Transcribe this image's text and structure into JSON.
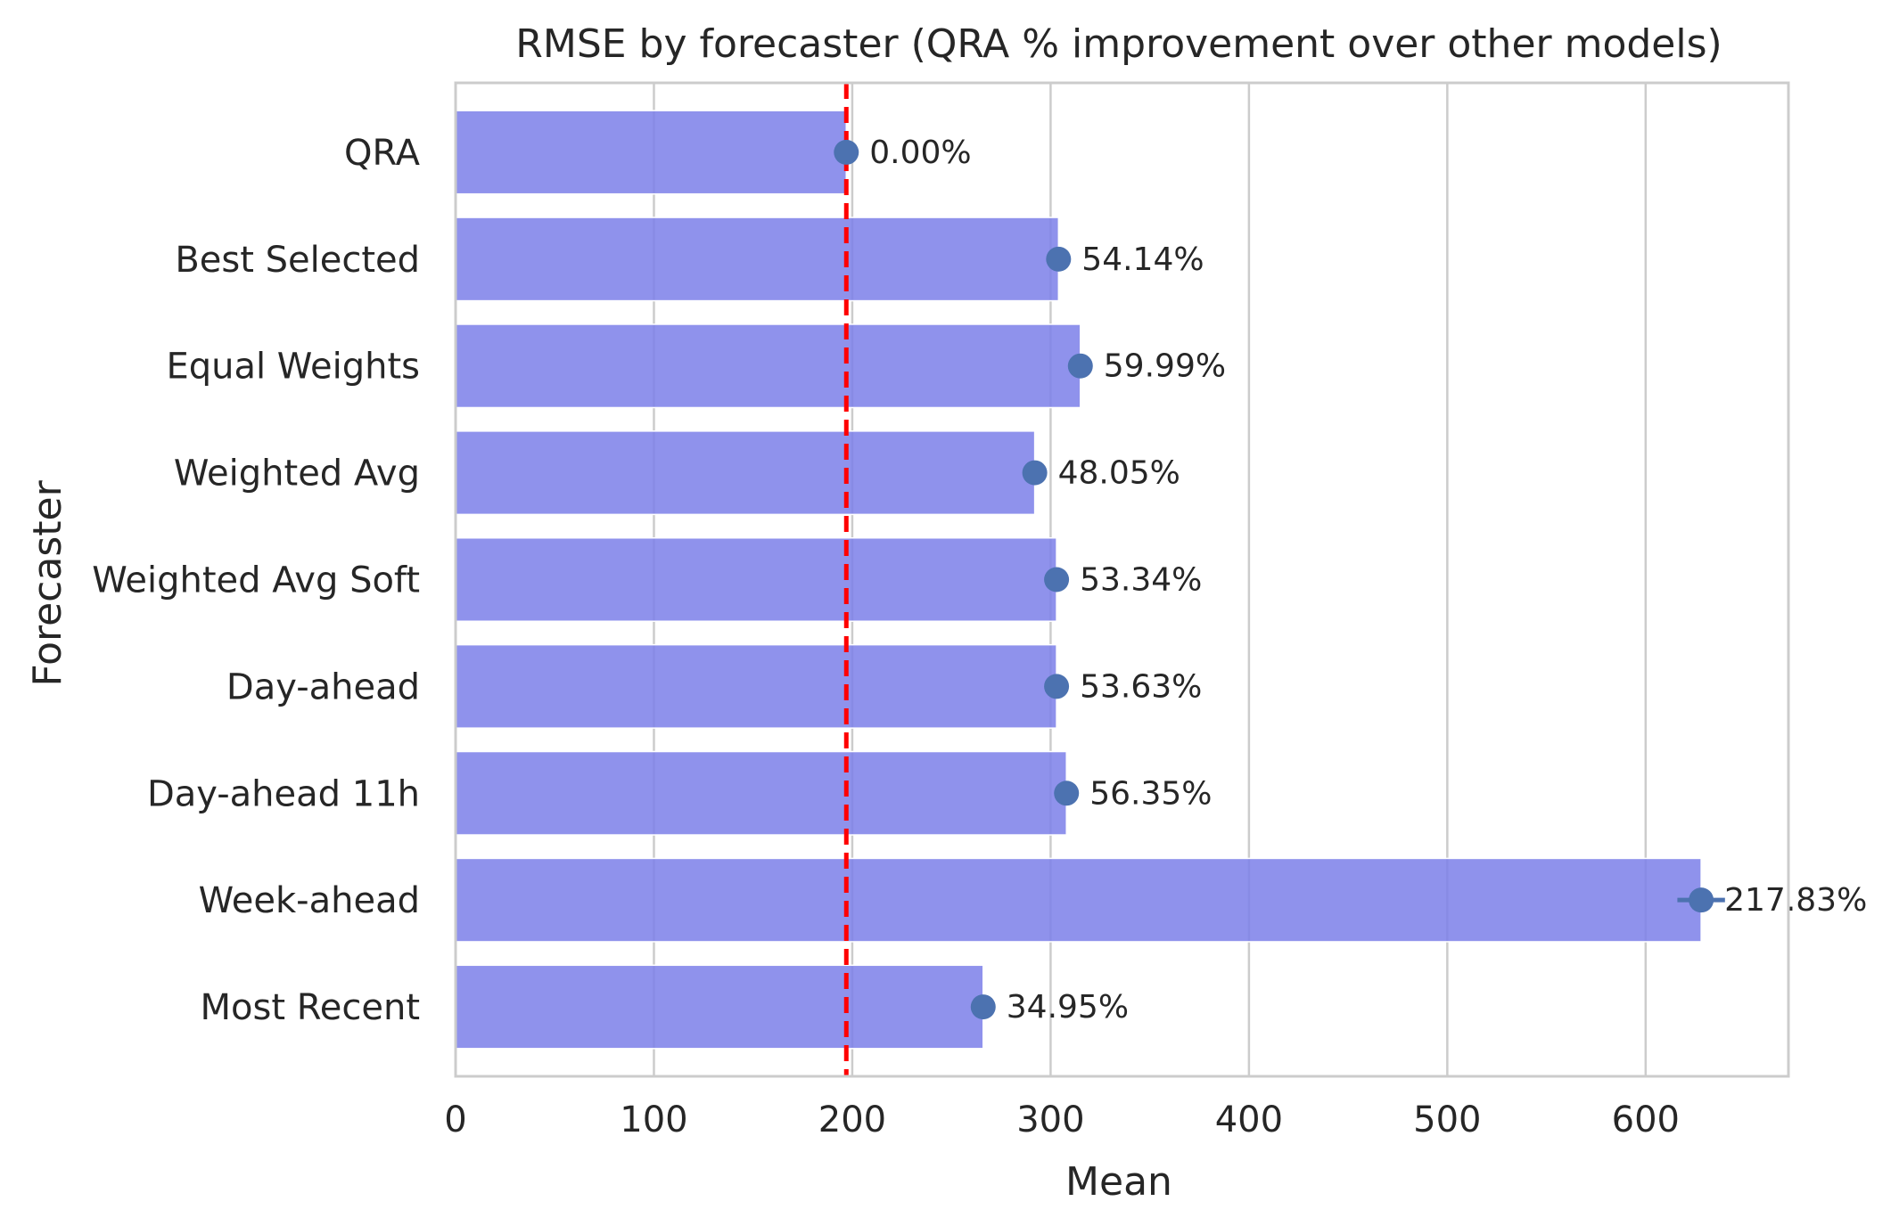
{
  "chart_data": {
    "type": "bar",
    "orientation": "horizontal",
    "title": "RMSE by forecaster (QRA % improvement over other models)",
    "xlabel": "Mean",
    "ylabel": "Forecaster",
    "xlim": [
      0,
      672
    ],
    "xticks": [
      "0",
      "100",
      "200",
      "300",
      "400",
      "500",
      "600"
    ],
    "xtick_values": [
      0,
      100,
      200,
      300,
      400,
      500,
      600
    ],
    "grid": "vertical",
    "categories": [
      "QRA",
      "Best Selected",
      "Equal Weights",
      "Weighted Avg",
      "Weighted Avg Soft",
      "Day-ahead",
      "Day-ahead 11h",
      "Week-ahead",
      "Most Recent"
    ],
    "values": [
      197,
      304,
      315,
      292,
      303,
      303,
      308,
      628,
      266
    ],
    "point_values": [
      197,
      304,
      315,
      292,
      303,
      303,
      308,
      628,
      266
    ],
    "error_halfwidth": [
      0,
      0,
      0,
      0,
      0,
      0,
      0,
      12,
      0
    ],
    "labels": [
      "0.00%",
      "54.14%",
      "59.99%",
      "48.05%",
      "53.34%",
      "53.63%",
      "56.35%",
      "217.83%",
      "34.95%"
    ],
    "reference_line": 197,
    "colors": {
      "bar": "#7b7fe9",
      "point": "#4c72b0",
      "reference": "#ff0000",
      "grid": "#cccccc",
      "frame": "#cccccc",
      "text": "#262626"
    }
  }
}
